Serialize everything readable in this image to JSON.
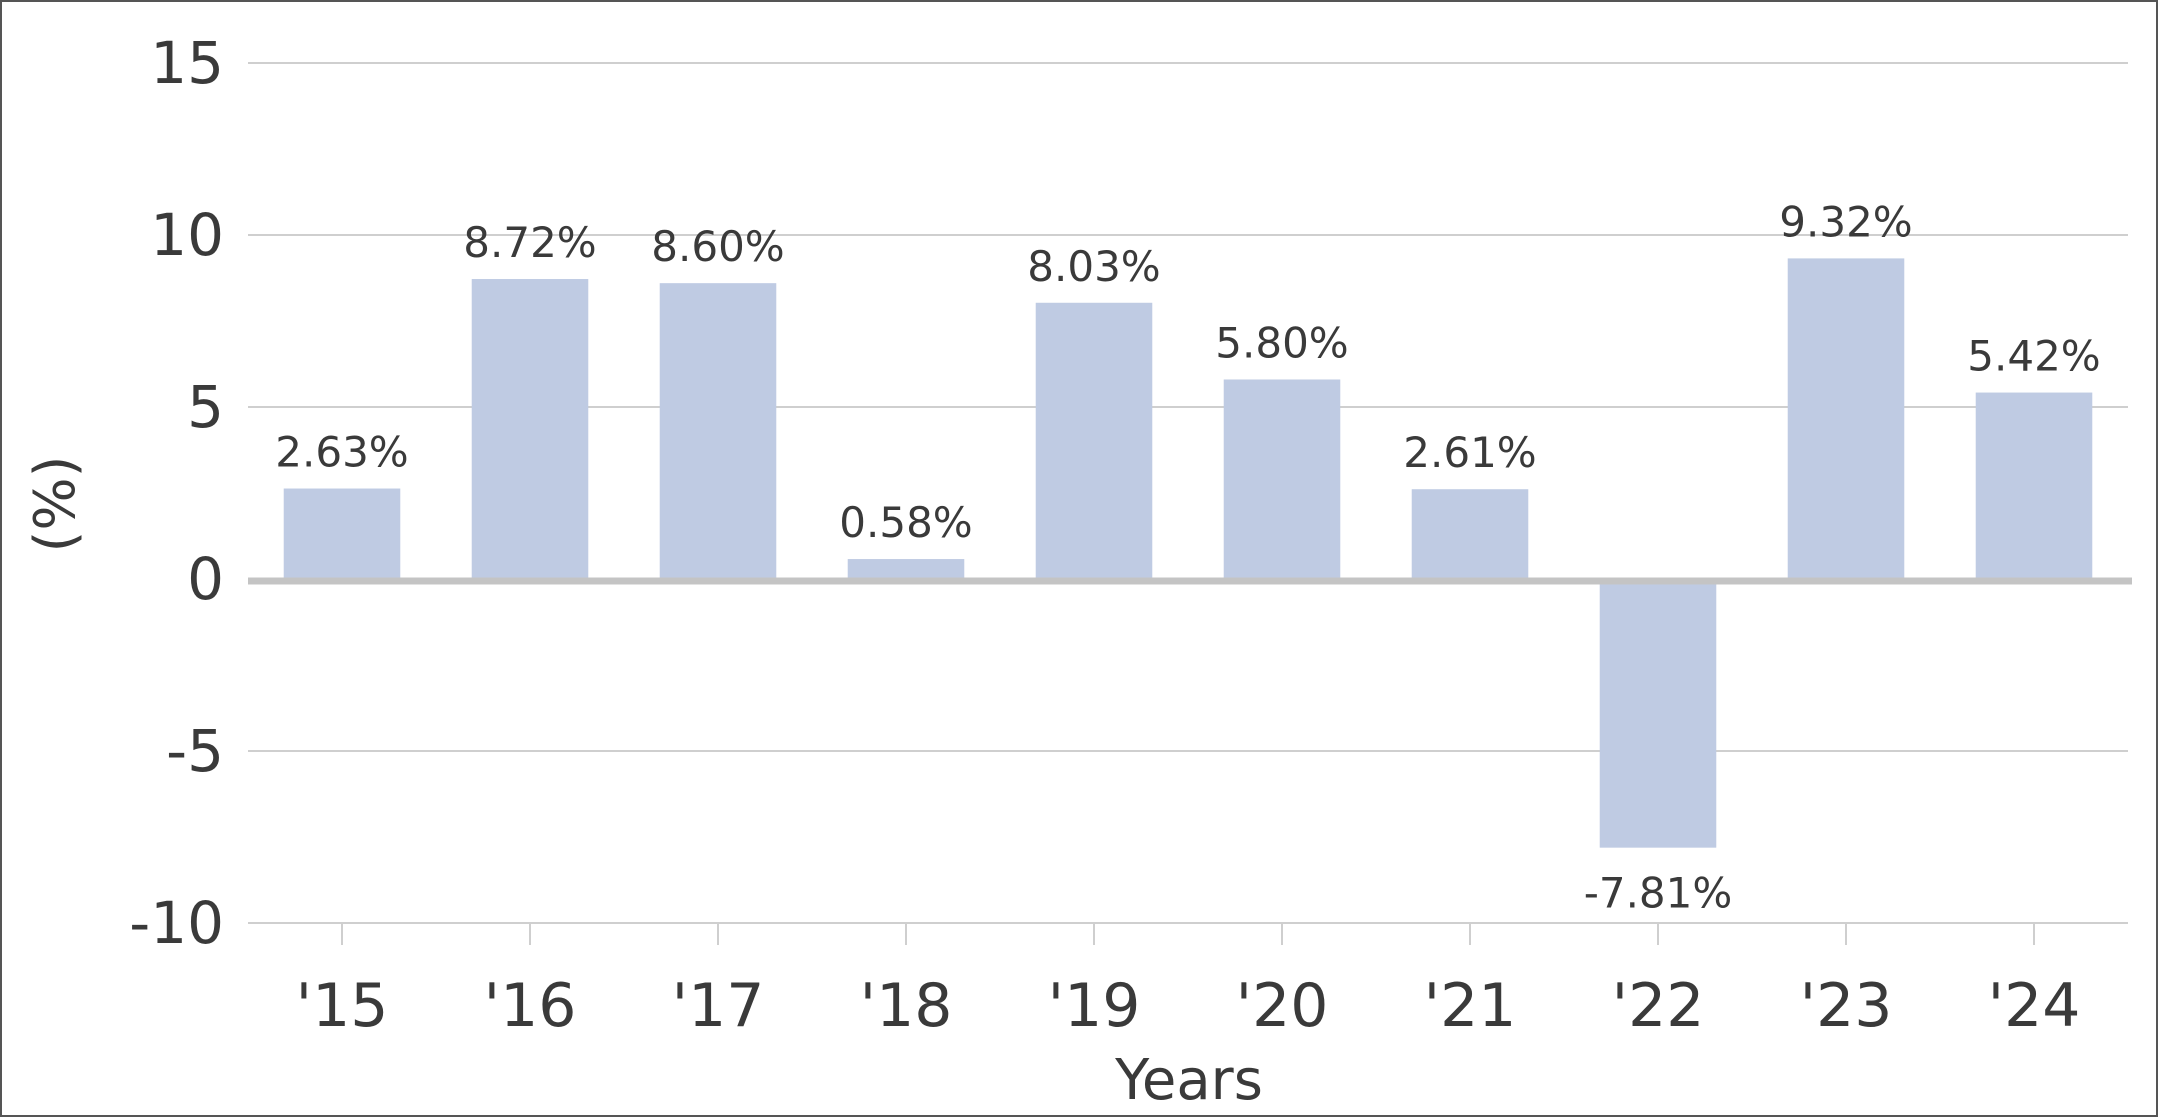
{
  "chart_data": {
    "type": "bar",
    "categories": [
      "'15",
      "'16",
      "'17",
      "'18",
      "'19",
      "'20",
      "'21",
      "'22",
      "'23",
      "'24"
    ],
    "values": [
      2.63,
      8.72,
      8.6,
      0.58,
      8.03,
      5.8,
      2.61,
      -7.81,
      9.32,
      5.42
    ],
    "data_labels": [
      "2.63%",
      "8.72%",
      "8.60%",
      "0.58%",
      "8.03%",
      "5.80%",
      "2.61%",
      "-7.81%",
      "9.32%",
      "5.42%"
    ],
    "xlabel": "Years",
    "ylabel": "(%)",
    "ylim": [
      -10,
      15
    ],
    "yticks": [
      15,
      10,
      5,
      0,
      -5,
      -10
    ],
    "grid": true,
    "colors": {
      "bar": "#bfcbe3",
      "grid": "#cfcfcf",
      "zero_line": "#c4c4c4",
      "text": "#3a3a3a"
    }
  }
}
